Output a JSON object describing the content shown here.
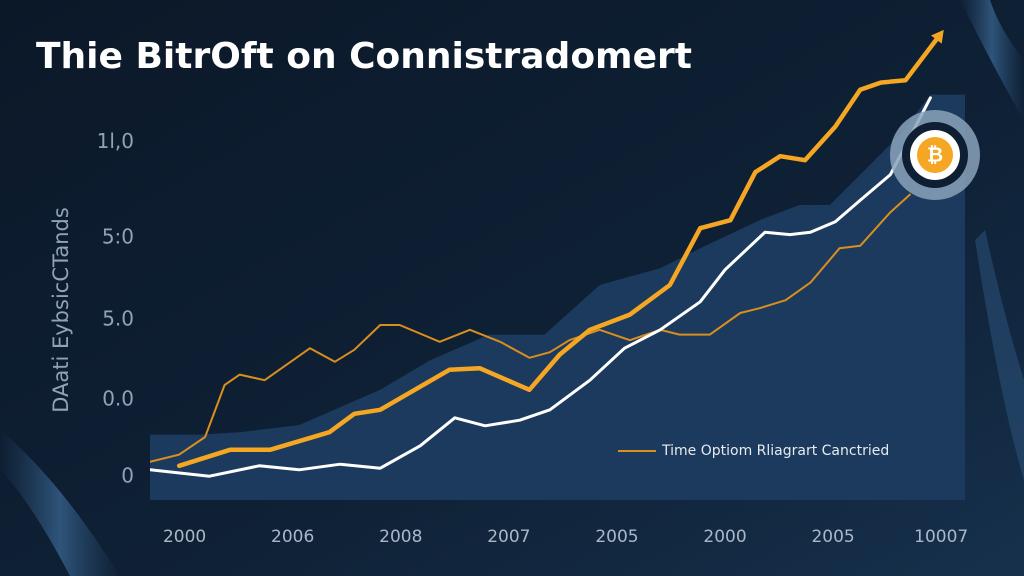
{
  "chart_data": {
    "type": "line",
    "title": "Thie BitrOft on Connistradomert",
    "y_label": "DAati EybsicCTands",
    "legend": "Time Optiom Rliagrart Canctried",
    "xlim": [
      -0.32,
      7.22
    ],
    "ylim": [
      0,
      6
    ],
    "xticks": [
      {
        "value": 0,
        "label": "2000"
      },
      {
        "value": 1,
        "label": "2006"
      },
      {
        "value": 2,
        "label": "2008"
      },
      {
        "value": 3,
        "label": "2007"
      },
      {
        "value": 4,
        "label": "2005"
      },
      {
        "value": 5,
        "label": "2000"
      },
      {
        "value": 6,
        "label": "2005"
      },
      {
        "value": 7,
        "label": "10007"
      }
    ],
    "yticks": [
      0,
      {
        "value": 0.96,
        "label": "0.0"
      },
      {
        "value": 1.96,
        "label": "5.0"
      },
      {
        "value": 2.99,
        "label": "5:0"
      },
      {
        "value": 4.18,
        "label": "1l,0"
      }
    ],
    "area": {
      "color": "#1c3a5d",
      "x": [
        -0.32,
        0.14,
        0.51,
        1.06,
        1.81,
        2.27,
        2.82,
        3.33,
        3.84,
        4.4,
        4.77,
        5.32,
        5.69,
        5.97,
        6.34,
        6.62,
        6.9,
        7.22
      ],
      "values": [
        0.53,
        0.53,
        0.56,
        0.65,
        1.09,
        1.46,
        1.78,
        1.78,
        2.4,
        2.61,
        2.86,
        3.21,
        3.4,
        3.4,
        3.9,
        4.28,
        4.78,
        4.78
      ]
    },
    "series": [
      {
        "color": "#d98f1e",
        "x": [
          -0.32,
          -0.05,
          0.19,
          0.37,
          0.51,
          0.74,
          1.16,
          1.39,
          1.57,
          1.81,
          1.99,
          2.36,
          2.64,
          2.92,
          3.19,
          3.38,
          3.56,
          3.84,
          4.12,
          4.4,
          4.58,
          4.86,
          5.14,
          5.32,
          5.56,
          5.79,
          6.06,
          6.25,
          6.53,
          6.71
        ],
        "values": [
          0.19,
          0.28,
          0.5,
          1.15,
          1.28,
          1.21,
          1.61,
          1.44,
          1.59,
          1.9,
          1.9,
          1.69,
          1.84,
          1.69,
          1.49,
          1.56,
          1.71,
          1.84,
          1.71,
          1.84,
          1.78,
          1.78,
          2.05,
          2.11,
          2.21,
          2.43,
          2.86,
          2.89,
          3.31,
          3.53
        ]
      },
      {
        "color": "#ffffff",
        "x": [
          -0.32,
          0.23,
          0.69,
          1.06,
          1.44,
          1.81,
          2.18,
          2.5,
          2.78,
          3.1,
          3.38,
          3.75,
          4.07,
          4.4,
          4.77,
          5,
          5.37,
          5.6,
          5.79,
          6.02,
          6.25,
          6.53,
          6.9
        ],
        "values": [
          0.09,
          0.01,
          0.14,
          0.09,
          0.16,
          0.11,
          0.39,
          0.74,
          0.64,
          0.71,
          0.84,
          1.21,
          1.61,
          1.84,
          2.19,
          2.59,
          3.06,
          3.03,
          3.06,
          3.19,
          3.46,
          3.78,
          4.74
        ]
      },
      {
        "color": "#f5a623",
        "x": [
          -0.05,
          0.42,
          0.79,
          1.34,
          1.57,
          1.81,
          2.45,
          2.73,
          3.19,
          3.47,
          3.75,
          4.12,
          4.49,
          4.77,
          5.05,
          5.28,
          5.51,
          5.74,
          6.02,
          6.25,
          6.44,
          6.67,
          6.99
        ],
        "values": [
          0.14,
          0.34,
          0.34,
          0.56,
          0.79,
          0.84,
          1.34,
          1.36,
          1.09,
          1.53,
          1.84,
          2.03,
          2.4,
          3.11,
          3.21,
          3.81,
          4.01,
          3.96,
          4.38,
          4.84,
          4.93,
          4.96,
          5.53
        ]
      }
    ]
  }
}
